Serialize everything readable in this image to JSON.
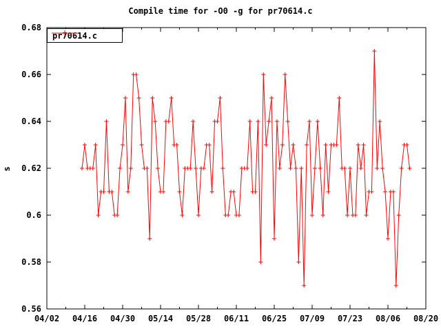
{
  "title": "Compile time for -O0 -g for pr70614.c",
  "colors": {
    "series": "#ff0000",
    "axis": "#000000",
    "background": "#ffffff"
  },
  "chart_data": {
    "type": "line",
    "title": "Compile time for -O0 -g for pr70614.c",
    "xlabel": "",
    "ylabel": "s",
    "ylim": [
      0.56,
      0.68
    ],
    "x_span_days": 140,
    "grid": false,
    "legend_position": "top-left-inside",
    "yticks": [
      {
        "label": "0.68",
        "value": 0.68
      },
      {
        "label": "0.66",
        "value": 0.66
      },
      {
        "label": "0.64",
        "value": 0.64
      },
      {
        "label": "0.62",
        "value": 0.62
      },
      {
        "label": "0.6",
        "value": 0.6
      },
      {
        "label": "0.58",
        "value": 0.58
      },
      {
        "label": "0.56",
        "value": 0.56
      }
    ],
    "xticks": [
      "04/02",
      "04/16",
      "04/30",
      "05/14",
      "05/28",
      "06/11",
      "06/25",
      "07/09",
      "07/23",
      "08/06",
      "08/20"
    ],
    "series": [
      {
        "name": "pr70614.c",
        "color": "#ff0000",
        "marker": "plus",
        "points": [
          [
            "04/15",
            0.62
          ],
          [
            "04/16",
            0.63
          ],
          [
            "04/17",
            0.62
          ],
          [
            "04/18",
            0.62
          ],
          [
            "04/19",
            0.62
          ],
          [
            "04/20",
            0.63
          ],
          [
            "04/21",
            0.6
          ],
          [
            "04/22",
            0.61
          ],
          [
            "04/23",
            0.61
          ],
          [
            "04/24",
            0.64
          ],
          [
            "04/25",
            0.61
          ],
          [
            "04/26",
            0.61
          ],
          [
            "04/27",
            0.6
          ],
          [
            "04/28",
            0.6
          ],
          [
            "04/29",
            0.62
          ],
          [
            "04/30",
            0.63
          ],
          [
            "05/01",
            0.65
          ],
          [
            "05/02",
            0.61
          ],
          [
            "05/03",
            0.62
          ],
          [
            "05/04",
            0.66
          ],
          [
            "05/05",
            0.66
          ],
          [
            "05/06",
            0.65
          ],
          [
            "05/07",
            0.63
          ],
          [
            "05/08",
            0.62
          ],
          [
            "05/09",
            0.62
          ],
          [
            "05/10",
            0.59
          ],
          [
            "05/11",
            0.65
          ],
          [
            "05/12",
            0.64
          ],
          [
            "05/13",
            0.62
          ],
          [
            "05/14",
            0.61
          ],
          [
            "05/15",
            0.61
          ],
          [
            "05/16",
            0.64
          ],
          [
            "05/17",
            0.64
          ],
          [
            "05/18",
            0.65
          ],
          [
            "05/19",
            0.63
          ],
          [
            "05/20",
            0.63
          ],
          [
            "05/21",
            0.61
          ],
          [
            "05/22",
            0.6
          ],
          [
            "05/23",
            0.62
          ],
          [
            "05/24",
            0.62
          ],
          [
            "05/25",
            0.62
          ],
          [
            "05/26",
            0.64
          ],
          [
            "05/27",
            0.62
          ],
          [
            "05/28",
            0.6
          ],
          [
            "05/29",
            0.62
          ],
          [
            "05/30",
            0.62
          ],
          [
            "05/31",
            0.63
          ],
          [
            "06/01",
            0.63
          ],
          [
            "06/02",
            0.61
          ],
          [
            "06/03",
            0.64
          ],
          [
            "06/04",
            0.64
          ],
          [
            "06/05",
            0.65
          ],
          [
            "06/06",
            0.62
          ],
          [
            "06/07",
            0.6
          ],
          [
            "06/08",
            0.6
          ],
          [
            "06/09",
            0.61
          ],
          [
            "06/10",
            0.61
          ],
          [
            "06/11",
            0.6
          ],
          [
            "06/12",
            0.6
          ],
          [
            "06/13",
            0.62
          ],
          [
            "06/14",
            0.62
          ],
          [
            "06/15",
            0.62
          ],
          [
            "06/16",
            0.64
          ],
          [
            "06/17",
            0.61
          ],
          [
            "06/18",
            0.61
          ],
          [
            "06/19",
            0.64
          ],
          [
            "06/20",
            0.58
          ],
          [
            "06/21",
            0.66
          ],
          [
            "06/22",
            0.63
          ],
          [
            "06/23",
            0.64
          ],
          [
            "06/24",
            0.65
          ],
          [
            "06/25",
            0.59
          ],
          [
            "06/26",
            0.64
          ],
          [
            "06/27",
            0.62
          ],
          [
            "06/28",
            0.63
          ],
          [
            "06/29",
            0.66
          ],
          [
            "06/30",
            0.64
          ],
          [
            "07/01",
            0.62
          ],
          [
            "07/02",
            0.63
          ],
          [
            "07/03",
            0.62
          ],
          [
            "07/04",
            0.58
          ],
          [
            "07/05",
            0.62
          ],
          [
            "07/06",
            0.57
          ],
          [
            "07/07",
            0.63
          ],
          [
            "07/08",
            0.64
          ],
          [
            "07/09",
            0.6
          ],
          [
            "07/10",
            0.62
          ],
          [
            "07/11",
            0.64
          ],
          [
            "07/12",
            0.62
          ],
          [
            "07/13",
            0.6
          ],
          [
            "07/14",
            0.63
          ],
          [
            "07/15",
            0.61
          ],
          [
            "07/16",
            0.63
          ],
          [
            "07/17",
            0.63
          ],
          [
            "07/18",
            0.63
          ],
          [
            "07/19",
            0.65
          ],
          [
            "07/20",
            0.62
          ],
          [
            "07/21",
            0.62
          ],
          [
            "07/22",
            0.6
          ],
          [
            "07/23",
            0.62
          ],
          [
            "07/24",
            0.6
          ],
          [
            "07/25",
            0.6
          ],
          [
            "07/26",
            0.63
          ],
          [
            "07/27",
            0.62
          ],
          [
            "07/28",
            0.63
          ],
          [
            "07/29",
            0.6
          ],
          [
            "07/30",
            0.61
          ],
          [
            "07/31",
            0.61
          ],
          [
            "08/01",
            0.67
          ],
          [
            "08/02",
            0.62
          ],
          [
            "08/03",
            0.64
          ],
          [
            "08/04",
            0.62
          ],
          [
            "08/05",
            0.61
          ],
          [
            "08/06",
            0.59
          ],
          [
            "08/07",
            0.61
          ],
          [
            "08/08",
            0.61
          ],
          [
            "08/09",
            0.57
          ],
          [
            "08/10",
            0.6
          ],
          [
            "08/11",
            0.62
          ],
          [
            "08/12",
            0.63
          ],
          [
            "08/13",
            0.63
          ],
          [
            "08/14",
            0.62
          ]
        ]
      }
    ]
  }
}
